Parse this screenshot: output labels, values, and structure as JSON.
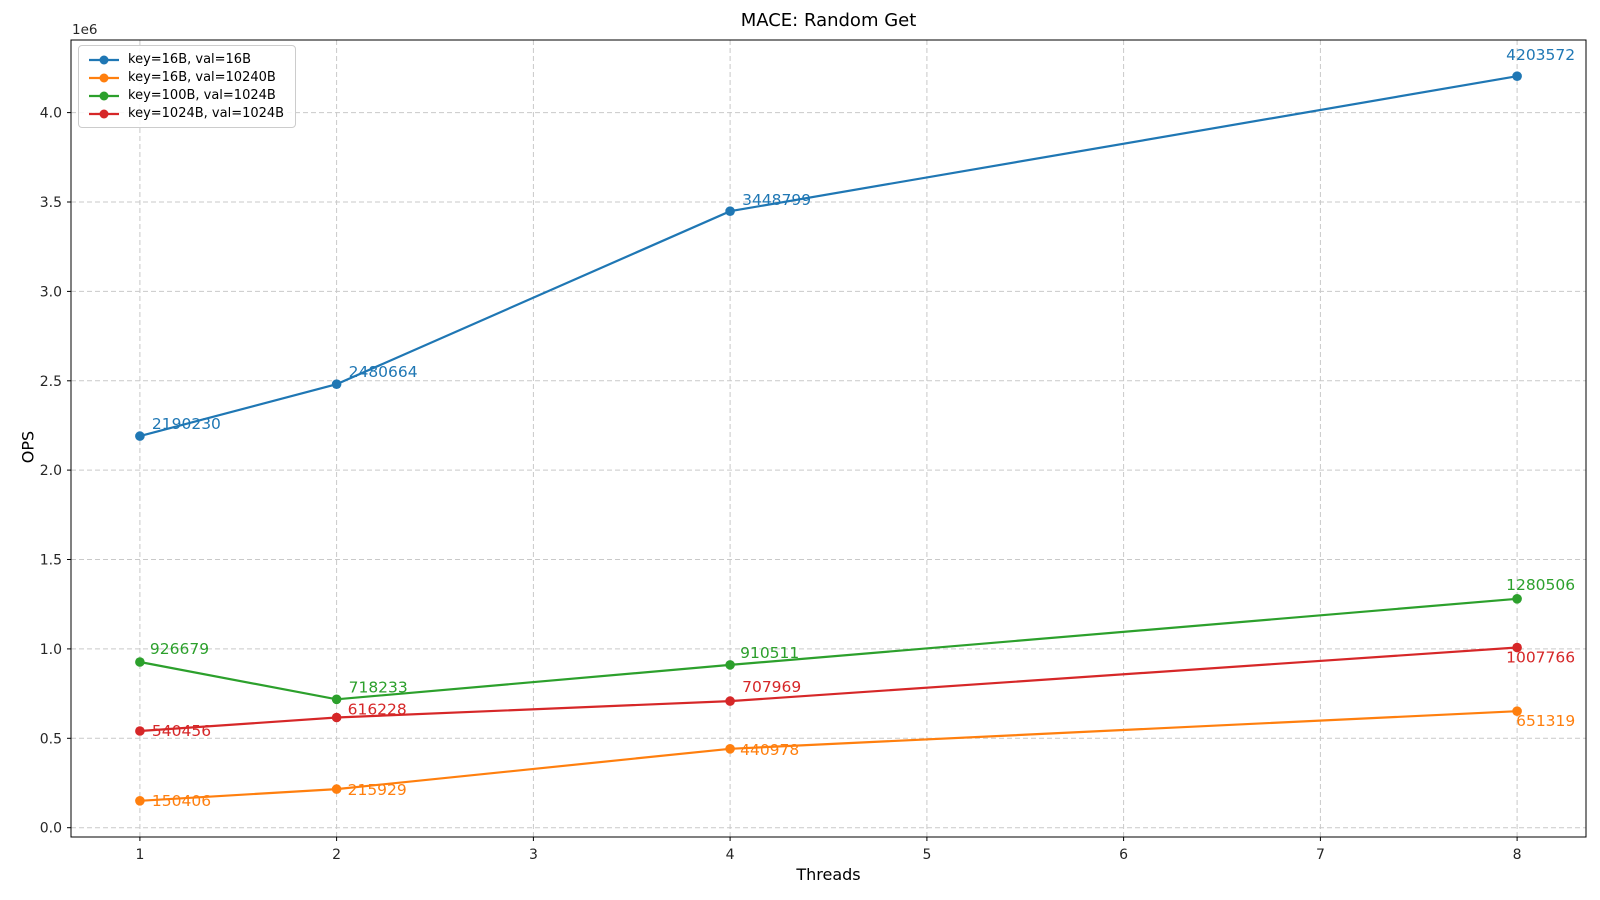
{
  "chart_data": {
    "type": "line",
    "title": "MACE: Random Get",
    "xlabel": "Threads",
    "ylabel": "OPS",
    "y_offset_label": "1e6",
    "x": [
      1,
      2,
      4,
      8
    ],
    "xticks": [
      1,
      2,
      3,
      4,
      5,
      6,
      7,
      8
    ],
    "yticks": [
      0,
      500000,
      1000000,
      1500000,
      2000000,
      2500000,
      3000000,
      3500000,
      4000000
    ],
    "xlim": [
      0.65,
      8.35
    ],
    "ylim": [
      -52252,
      4406231
    ],
    "grid": true,
    "grid_style": "dashed",
    "legend_position": "upper left",
    "series": [
      {
        "name": "key=16B, val=16B",
        "color": "#1f77b4",
        "values": [
          2190230,
          2480664,
          3448799,
          4203572
        ],
        "label_offsets": [
          [
            12,
            -7
          ],
          [
            12,
            -7
          ],
          [
            12,
            -6
          ],
          [
            -11,
            -16
          ]
        ]
      },
      {
        "name": "key=16B, val=10240B",
        "color": "#ff7f0e",
        "values": [
          150406,
          215929,
          440978,
          651319
        ],
        "label_offsets": [
          [
            12,
            5
          ],
          [
            11,
            6
          ],
          [
            10,
            6
          ],
          [
            -1,
            15
          ]
        ]
      },
      {
        "name": "key=100B, val=1024B",
        "color": "#2ca02c",
        "values": [
          926679,
          718233,
          910511,
          1280506
        ],
        "label_offsets": [
          [
            10,
            -8
          ],
          [
            12,
            -7
          ],
          [
            10,
            -7
          ],
          [
            -11,
            -9
          ]
        ]
      },
      {
        "name": "key=1024B, val=1024B",
        "color": "#d62728",
        "values": [
          540456,
          616228,
          707969,
          1007766
        ],
        "label_offsets": [
          [
            12,
            5
          ],
          [
            11,
            -3
          ],
          [
            12,
            -9
          ],
          [
            -11,
            15
          ]
        ]
      }
    ]
  }
}
